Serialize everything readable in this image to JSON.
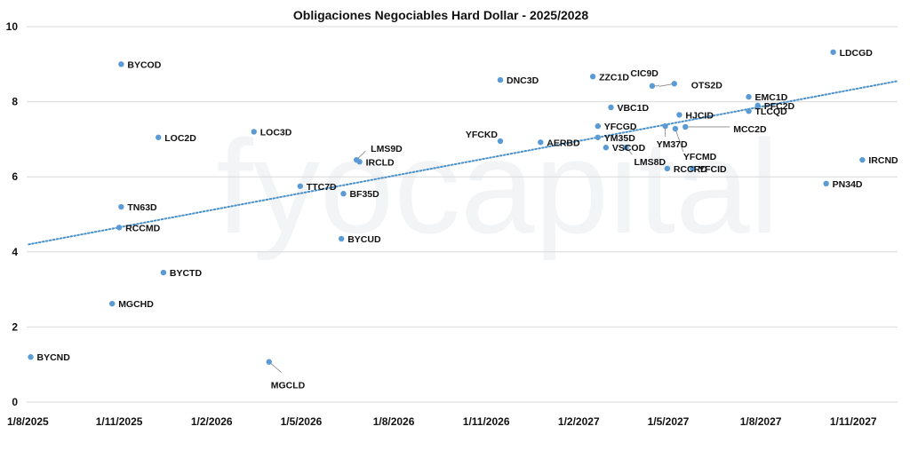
{
  "chart_data": {
    "type": "scatter",
    "title": "Obligaciones Negociables Hard Dollar - 2025/2028",
    "xlabel": "",
    "ylabel": "",
    "x_axis": {
      "type": "date",
      "range": [
        "2025-08-01",
        "2027-12-15"
      ],
      "ticks": [
        {
          "date": "2025-08-01",
          "label": "1/8/2025"
        },
        {
          "date": "2025-11-01",
          "label": "1/11/2025"
        },
        {
          "date": "2026-02-01",
          "label": "1/2/2026"
        },
        {
          "date": "2026-05-01",
          "label": "1/5/2026"
        },
        {
          "date": "2026-08-01",
          "label": "1/8/2026"
        },
        {
          "date": "2026-11-01",
          "label": "1/11/2026"
        },
        {
          "date": "2027-02-01",
          "label": "1/2/2027"
        },
        {
          "date": "2027-05-01",
          "label": "1/5/2027"
        },
        {
          "date": "2027-08-01",
          "label": "1/8/2027"
        },
        {
          "date": "2027-11-01",
          "label": "1/11/2027"
        }
      ]
    },
    "y_axis": {
      "range": [
        0,
        10
      ],
      "ticks": [
        0,
        2,
        4,
        6,
        8,
        10
      ]
    },
    "grid": {
      "horizontal": true,
      "vertical": false
    },
    "legend": "none",
    "colors": {
      "point": "#5b9bd5",
      "trend": "#4a90c9",
      "grid": "#d9d9d9",
      "leader": "#888888"
    },
    "trendline": {
      "style": "dotted",
      "from": {
        "x": "2025-08-03",
        "y": 4.2
      },
      "to": {
        "x": "2027-12-15",
        "y": 8.55
      }
    },
    "points": [
      {
        "label": "BYCND",
        "x": "2025-08-05",
        "y": 1.2
      },
      {
        "label": "MGCHD",
        "x": "2025-10-25",
        "y": 2.62
      },
      {
        "label": "RCCMD",
        "x": "2025-11-01",
        "y": 4.65
      },
      {
        "label": "BYCOD",
        "x": "2025-11-03",
        "y": 9.0
      },
      {
        "label": "TN63D",
        "x": "2025-11-03",
        "y": 5.2
      },
      {
        "label": "BYCTD",
        "x": "2025-12-15",
        "y": 3.45
      },
      {
        "label": "LOC2D",
        "x": "2025-12-10",
        "y": 7.05
      },
      {
        "label": "LOC3D",
        "x": "2026-03-15",
        "y": 7.2
      },
      {
        "label": "MGCLD",
        "x": "2026-03-30",
        "y": 1.07
      },
      {
        "label": "TTC7D",
        "x": "2026-04-30",
        "y": 5.75
      },
      {
        "label": "BYCUD",
        "x": "2026-06-10",
        "y": 4.35
      },
      {
        "label": "BF35D",
        "x": "2026-06-12",
        "y": 5.55
      },
      {
        "label": "LMS9D",
        "x": "2026-06-25",
        "y": 6.45
      },
      {
        "label": "IRCLD",
        "x": "2026-06-28",
        "y": 6.4
      },
      {
        "label": "DNC3D",
        "x": "2026-11-15",
        "y": 8.58
      },
      {
        "label": "YFCKD",
        "x": "2026-11-15",
        "y": 6.95
      },
      {
        "label": "AERBD",
        "x": "2026-12-25",
        "y": 6.92
      },
      {
        "label": "ZZC1D",
        "x": "2027-02-15",
        "y": 8.67
      },
      {
        "label": "YFCGD",
        "x": "2027-02-20",
        "y": 7.35
      },
      {
        "label": "YM35D",
        "x": "2027-02-20",
        "y": 7.05
      },
      {
        "label": "VSCOD",
        "x": "2027-02-28",
        "y": 6.78
      },
      {
        "label": "VBC1D",
        "x": "2027-03-05",
        "y": 7.85
      },
      {
        "label": "LMS8D",
        "x": "2027-03-20",
        "y": 6.78
      },
      {
        "label": "CIC9D",
        "x": "2027-04-15",
        "y": 8.42
      },
      {
        "label": "OTS2D",
        "x": "2027-05-07",
        "y": 8.48
      },
      {
        "label": "YM37D",
        "x": "2027-04-28",
        "y": 7.35
      },
      {
        "label": "RCCRD",
        "x": "2027-04-30",
        "y": 6.22
      },
      {
        "label": "YFCMD",
        "x": "2027-05-08",
        "y": 7.28
      },
      {
        "label": "HJCID",
        "x": "2027-05-12",
        "y": 7.65
      },
      {
        "label": "MCC2D",
        "x": "2027-05-18",
        "y": 7.33
      },
      {
        "label": "YFCID",
        "x": "2027-05-25",
        "y": 6.22
      },
      {
        "label": "EMC1D",
        "x": "2027-07-20",
        "y": 8.13
      },
      {
        "label": "TLCQD",
        "x": "2027-07-20",
        "y": 7.75
      },
      {
        "label": "PFC2D",
        "x": "2027-07-29",
        "y": 7.9
      },
      {
        "label": "PN34D",
        "x": "2027-10-05",
        "y": 5.82
      },
      {
        "label": "LDCGD",
        "x": "2027-10-12",
        "y": 9.32
      },
      {
        "label": "IRCND",
        "x": "2027-11-10",
        "y": 6.45
      }
    ]
  },
  "watermark": {
    "text": "fyocapital"
  }
}
